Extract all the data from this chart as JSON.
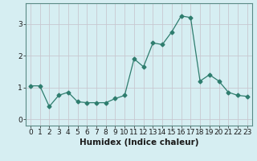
{
  "x": [
    0,
    1,
    2,
    3,
    4,
    5,
    6,
    7,
    8,
    9,
    10,
    11,
    12,
    13,
    14,
    15,
    16,
    17,
    18,
    19,
    20,
    21,
    22,
    23
  ],
  "y": [
    1.05,
    1.05,
    0.4,
    0.75,
    0.85,
    0.55,
    0.52,
    0.52,
    0.52,
    0.65,
    0.75,
    1.9,
    1.65,
    2.4,
    2.35,
    2.75,
    3.25,
    3.2,
    1.2,
    1.4,
    1.2,
    0.85,
    0.75,
    0.72
  ],
  "line_color": "#2e7d6e",
  "marker": "D",
  "marker_size": 2.5,
  "bg_color": "#d6eef2",
  "grid_color": "#c8c8d0",
  "xlabel": "Humidex (Indice chaleur)",
  "xlabel_fontsize": 7.5,
  "tick_fontsize": 6.5,
  "ylim": [
    -0.2,
    3.65
  ],
  "yticks": [
    0,
    1,
    2,
    3
  ],
  "xlim": [
    -0.5,
    23.5
  ]
}
